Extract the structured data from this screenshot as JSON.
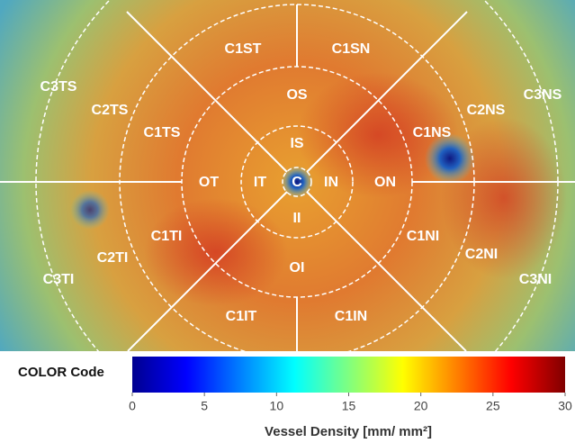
{
  "region_labels": [
    "C1ST",
    "C1SN",
    "C3TS",
    "C2TS",
    "C1TS",
    "OS",
    "C2NS",
    "C3NS",
    "IS",
    "C1NS",
    "OT",
    "IT",
    "C",
    "IN",
    "ON",
    "II",
    "C1TI",
    "C1NI",
    "C2TI",
    "C2NI",
    "OI",
    "C3TI",
    "C3NI",
    "C1IT",
    "C1IN"
  ],
  "colorbar": {
    "label": "COLOR Code",
    "title": "Vessel Density [mm/ mm²]",
    "range": [
      0,
      30
    ],
    "ticks": [
      0,
      5,
      10,
      15,
      20,
      25,
      30
    ]
  }
}
